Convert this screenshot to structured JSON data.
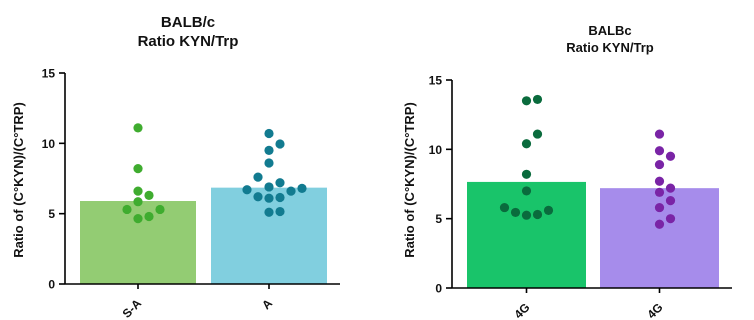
{
  "chart_data": [
    {
      "type": "bar",
      "title": "BALB/c",
      "subtitle": "Ratio KYN/Trp",
      "ylabel": "Ratio of (C°KYN)/(C°TRP)",
      "xlabel": "",
      "ylim": [
        0,
        15
      ],
      "yticks": [
        0,
        5,
        10,
        15
      ],
      "grid": false,
      "categories": [
        "S-A",
        "A"
      ],
      "values": [
        5.9,
        6.85
      ],
      "bar_colors": [
        "#93cc73",
        "#81cfdf"
      ],
      "point_colors": [
        "#3fac2f",
        "#127b90"
      ],
      "points": [
        [
          11.1,
          8.2,
          6.6,
          6.3,
          5.85,
          5.3,
          5.3,
          4.8,
          4.65
        ],
        [
          10.7,
          9.95,
          9.5,
          8.6,
          7.6,
          7.2,
          6.9,
          6.8,
          6.7,
          6.6,
          6.2,
          6.15,
          6.1,
          5.15,
          5.1
        ]
      ]
    },
    {
      "type": "bar",
      "title": "BALBc",
      "subtitle": "Ratio KYN/Trp",
      "ylabel": "Ratio of (C°KYN)/(C°TRP)",
      "xlabel": "",
      "ylim": [
        0,
        15
      ],
      "yticks": [
        0,
        5,
        10,
        15
      ],
      "grid": false,
      "categories": [
        "4G",
        "4G"
      ],
      "values": [
        7.65,
        7.2
      ],
      "bar_colors": [
        "#19c46a",
        "#a68ceb"
      ],
      "point_colors": [
        "#0a6b3d",
        "#7a24a6"
      ],
      "points": [
        [
          13.6,
          13.5,
          11.1,
          10.4,
          8.2,
          7.0,
          5.8,
          5.6,
          5.45,
          5.3,
          5.25
        ],
        [
          11.1,
          9.9,
          9.5,
          8.9,
          7.7,
          7.2,
          6.9,
          6.3,
          5.8,
          5.0,
          4.6
        ]
      ]
    }
  ]
}
